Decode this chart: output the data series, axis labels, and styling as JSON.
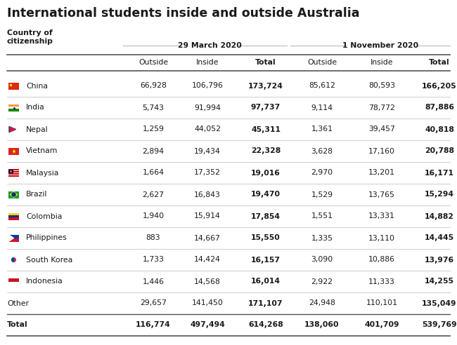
{
  "title": "International students inside and outside Australia",
  "col_header_date1": "29 March 2020",
  "col_header_date2": "1 November 2020",
  "sub_headers": [
    "Outside",
    "Inside",
    "Total",
    "Outside",
    "Inside",
    "Total"
  ],
  "rows": [
    {
      "flag": "china",
      "country": "China",
      "d1_out": "66,928",
      "d1_in": "106,796",
      "d1_tot": "173,724",
      "d2_out": "85,612",
      "d2_in": "80,593",
      "d2_tot": "166,205"
    },
    {
      "flag": "india",
      "country": "India",
      "d1_out": "5,743",
      "d1_in": "91,994",
      "d1_tot": "97,737",
      "d2_out": "9,114",
      "d2_in": "78,772",
      "d2_tot": "87,886"
    },
    {
      "flag": "nepal",
      "country": "Nepal",
      "d1_out": "1,259",
      "d1_in": "44,052",
      "d1_tot": "45,311",
      "d2_out": "1,361",
      "d2_in": "39,457",
      "d2_tot": "40,818"
    },
    {
      "flag": "vietnam",
      "country": "Vietnam",
      "d1_out": "2,894",
      "d1_in": "19,434",
      "d1_tot": "22,328",
      "d2_out": "3,628",
      "d2_in": "17,160",
      "d2_tot": "20,788"
    },
    {
      "flag": "malaysia",
      "country": "Malaysia",
      "d1_out": "1,664",
      "d1_in": "17,352",
      "d1_tot": "19,016",
      "d2_out": "2,970",
      "d2_in": "13,201",
      "d2_tot": "16,171"
    },
    {
      "flag": "brazil",
      "country": "Brazil",
      "d1_out": "2,627",
      "d1_in": "16,843",
      "d1_tot": "19,470",
      "d2_out": "1,529",
      "d2_in": "13,765",
      "d2_tot": "15,294"
    },
    {
      "flag": "colombia",
      "country": "Colombia",
      "d1_out": "1,940",
      "d1_in": "15,914",
      "d1_tot": "17,854",
      "d2_out": "1,551",
      "d2_in": "13,331",
      "d2_tot": "14,882"
    },
    {
      "flag": "philippines",
      "country": "Philippines",
      "d1_out": "883",
      "d1_in": "14,667",
      "d1_tot": "15,550",
      "d2_out": "1,335",
      "d2_in": "13,110",
      "d2_tot": "14,445"
    },
    {
      "flag": "southkorea",
      "country": "South Korea",
      "d1_out": "1,733",
      "d1_in": "14,424",
      "d1_tot": "16,157",
      "d2_out": "3,090",
      "d2_in": "10,886",
      "d2_tot": "13,976"
    },
    {
      "flag": "indonesia",
      "country": "Indonesia",
      "d1_out": "1,446",
      "d1_in": "14,568",
      "d1_tot": "16,014",
      "d2_out": "2,922",
      "d2_in": "11,333",
      "d2_tot": "14,255"
    },
    {
      "flag": null,
      "country": "Other",
      "d1_out": "29,657",
      "d1_in": "141,450",
      "d1_tot": "171,107",
      "d2_out": "24,948",
      "d2_in": "110,101",
      "d2_tot": "135,049"
    },
    {
      "flag": null,
      "country": "Total",
      "d1_out": "116,774",
      "d1_in": "497,494",
      "d1_tot": "614,268",
      "d2_out": "138,060",
      "d2_in": "401,709",
      "d2_tot": "539,769"
    }
  ],
  "bg_color": "#ffffff",
  "title_fontsize": 12.5,
  "header_fontsize": 7.8,
  "data_fontsize": 7.8,
  "text_color": "#1a1a1a",
  "line_color": "#bbbbbb",
  "thick_line_color": "#555555"
}
